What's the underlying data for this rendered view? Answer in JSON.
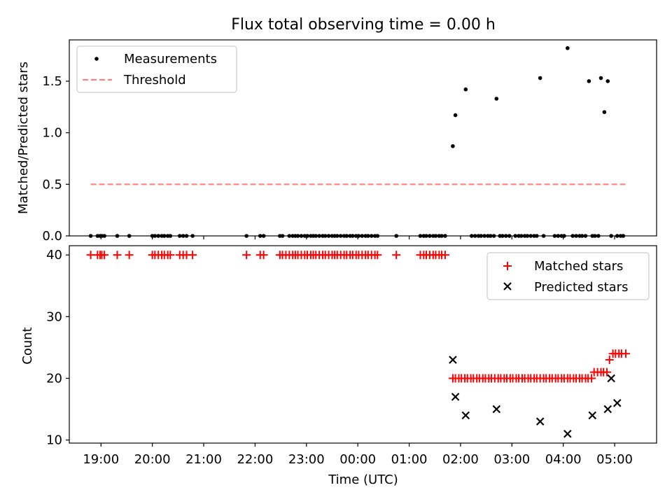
{
  "colors": {
    "measurement": "#000000",
    "threshold": "#ff8080",
    "matched": "#ff0000",
    "predicted": "#000000",
    "axes": "#000000"
  },
  "chart_data": [
    {
      "type": "scatter",
      "title": "Flux total observing time = 0.00 h",
      "xlabel": "",
      "ylabel": "Matched/Predicted stars",
      "ylim": [
        0,
        1.9
      ],
      "xlim": [
        "18:23",
        "05:49"
      ],
      "yticks": [
        "0.0",
        "0.5",
        "1.0",
        "1.5"
      ],
      "legend_position": "top-left",
      "grid": false,
      "series": [
        {
          "name": "Measurements",
          "marker": "dot",
          "x": [
            "18:48",
            "18:56",
            "18:59",
            "19:01",
            "19:04",
            "19:19",
            "19:33",
            "20:00",
            "20:03",
            "20:07",
            "20:11",
            "20:14",
            "20:18",
            "20:21",
            "20:32",
            "20:36",
            "20:40",
            "20:47",
            "21:50",
            "22:06",
            "22:10",
            "22:29",
            "22:32",
            "22:40",
            "22:44",
            "22:47",
            "22:50",
            "22:54",
            "22:58",
            "23:01",
            "23:05",
            "23:08",
            "23:11",
            "23:15",
            "23:19",
            "23:22",
            "23:26",
            "23:30",
            "23:33",
            "23:36",
            "23:40",
            "23:44",
            "23:47",
            "23:51",
            "23:54",
            "23:58",
            "00:01",
            "00:05",
            "00:09",
            "00:12",
            "00:16",
            "00:20",
            "00:23",
            "00:45",
            "01:13",
            "01:17",
            "01:20",
            "01:24",
            "01:28",
            "01:31",
            "01:35",
            "01:38",
            "01:42",
            "01:51",
            "01:54",
            "02:06",
            "02:13",
            "02:17",
            "02:21",
            "02:24",
            "02:28",
            "02:32",
            "02:35",
            "02:39",
            "02:42",
            "02:46",
            "02:49",
            "02:53",
            "02:57",
            "03:04",
            "03:08",
            "03:11",
            "03:15",
            "03:18",
            "03:22",
            "03:26",
            "03:29",
            "03:33",
            "03:37",
            "03:50",
            "03:54",
            "03:58",
            "04:01",
            "04:05",
            "04:11",
            "04:15",
            "04:19",
            "04:22",
            "04:26",
            "04:30",
            "04:34",
            "04:37",
            "04:41",
            "04:44",
            "04:48",
            "04:52",
            "04:56",
            "05:03",
            "05:07",
            "05:10"
          ],
          "y": [
            0,
            0,
            0,
            0,
            0,
            0,
            0,
            0,
            0,
            0,
            0,
            0,
            0,
            0,
            0,
            0,
            0,
            0,
            0,
            0,
            0,
            0,
            0,
            0,
            0,
            0,
            0,
            0,
            0,
            0,
            0,
            0,
            0,
            0,
            0,
            0,
            0,
            0,
            0,
            0,
            0,
            0,
            0,
            0,
            0,
            0,
            0,
            0,
            0,
            0,
            0,
            0,
            0,
            0,
            0,
            0,
            0,
            0,
            0,
            0,
            0,
            0,
            0,
            0.87,
            1.17,
            1.42,
            0,
            0,
            0,
            0,
            0,
            0,
            0,
            0,
            1.33,
            0,
            0,
            0,
            0,
            0,
            0,
            0,
            0,
            0,
            0,
            0,
            0,
            1.53,
            0,
            0,
            0,
            0,
            0,
            1.82,
            0,
            0,
            0,
            0,
            0,
            1.5,
            0,
            0,
            0,
            1.53,
            1.2,
            1.5,
            0,
            0,
            0,
            0
          ]
        },
        {
          "name": "Threshold",
          "marker": "dashed-line",
          "x": [
            "18:48",
            "05:13"
          ],
          "y": [
            0.5,
            0.5
          ]
        }
      ]
    },
    {
      "type": "scatter",
      "title": "",
      "xlabel": "Time (UTC)",
      "ylabel": "Count",
      "ylim": [
        9.5,
        41.5
      ],
      "xlim": [
        "18:23",
        "05:49"
      ],
      "yticks": [
        "10",
        "20",
        "30",
        "40"
      ],
      "xticks": [
        "19:00",
        "20:00",
        "21:00",
        "22:00",
        "23:00",
        "00:00",
        "01:00",
        "02:00",
        "03:00",
        "04:00",
        "05:00"
      ],
      "legend_position": "top-right",
      "grid": false,
      "series": [
        {
          "name": "Matched stars",
          "marker": "plus",
          "x": [
            "18:48",
            "18:56",
            "18:59",
            "19:01",
            "19:04",
            "19:19",
            "19:33",
            "20:00",
            "20:03",
            "20:07",
            "20:11",
            "20:14",
            "20:18",
            "20:21",
            "20:32",
            "20:36",
            "20:40",
            "20:47",
            "21:50",
            "22:06",
            "22:10",
            "22:29",
            "22:32",
            "22:36",
            "22:40",
            "22:44",
            "22:47",
            "22:50",
            "22:54",
            "22:58",
            "23:01",
            "23:05",
            "23:08",
            "23:11",
            "23:15",
            "23:19",
            "23:22",
            "23:26",
            "23:30",
            "23:33",
            "23:36",
            "23:40",
            "23:44",
            "23:47",
            "23:51",
            "23:54",
            "23:58",
            "00:01",
            "00:05",
            "00:09",
            "00:12",
            "00:16",
            "00:20",
            "00:23",
            "00:45",
            "01:13",
            "01:17",
            "01:20",
            "01:24",
            "01:28",
            "01:31",
            "01:35",
            "01:38",
            "01:42",
            "01:51",
            "01:54",
            "01:58",
            "02:01",
            "02:05",
            "02:08",
            "02:12",
            "02:15",
            "02:19",
            "02:22",
            "02:26",
            "02:29",
            "02:33",
            "02:36",
            "02:40",
            "02:44",
            "02:47",
            "02:51",
            "02:54",
            "02:58",
            "03:01",
            "03:05",
            "03:08",
            "03:12",
            "03:15",
            "03:19",
            "03:22",
            "03:26",
            "03:29",
            "03:33",
            "03:37",
            "03:40",
            "03:44",
            "03:47",
            "03:51",
            "03:54",
            "03:58",
            "04:01",
            "04:05",
            "04:08",
            "04:12",
            "04:15",
            "04:19",
            "04:22",
            "04:26",
            "04:29",
            "04:33",
            "04:36",
            "04:40",
            "04:44",
            "04:47",
            "04:51",
            "04:54",
            "04:58",
            "05:01",
            "05:05",
            "05:08",
            "05:13"
          ],
          "y": [
            40,
            40,
            40,
            40,
            40,
            40,
            40,
            40,
            40,
            40,
            40,
            40,
            40,
            40,
            40,
            40,
            40,
            40,
            40,
            40,
            40,
            40,
            40,
            40,
            40,
            40,
            40,
            40,
            40,
            40,
            40,
            40,
            40,
            40,
            40,
            40,
            40,
            40,
            40,
            40,
            40,
            40,
            40,
            40,
            40,
            40,
            40,
            40,
            40,
            40,
            40,
            40,
            40,
            40,
            40,
            40,
            40,
            40,
            40,
            40,
            40,
            40,
            40,
            40,
            20,
            20,
            20,
            20,
            20,
            20,
            20,
            20,
            20,
            20,
            20,
            20,
            20,
            20,
            20,
            20,
            20,
            20,
            20,
            20,
            20,
            20,
            20,
            20,
            20,
            20,
            20,
            20,
            20,
            20,
            20,
            20,
            20,
            20,
            20,
            20,
            20,
            20,
            20,
            20,
            20,
            20,
            20,
            20,
            20,
            20,
            20,
            21,
            21,
            21,
            21,
            21,
            23,
            24,
            24,
            24,
            24,
            24
          ]
        },
        {
          "name": "Predicted stars",
          "marker": "x",
          "x": [
            "01:51",
            "01:54",
            "02:06",
            "02:42",
            "03:33",
            "04:05",
            "04:34",
            "04:52",
            "04:56",
            "05:03"
          ],
          "y": [
            23,
            17,
            14,
            15,
            13,
            11,
            14,
            15,
            20,
            16
          ]
        }
      ]
    }
  ]
}
